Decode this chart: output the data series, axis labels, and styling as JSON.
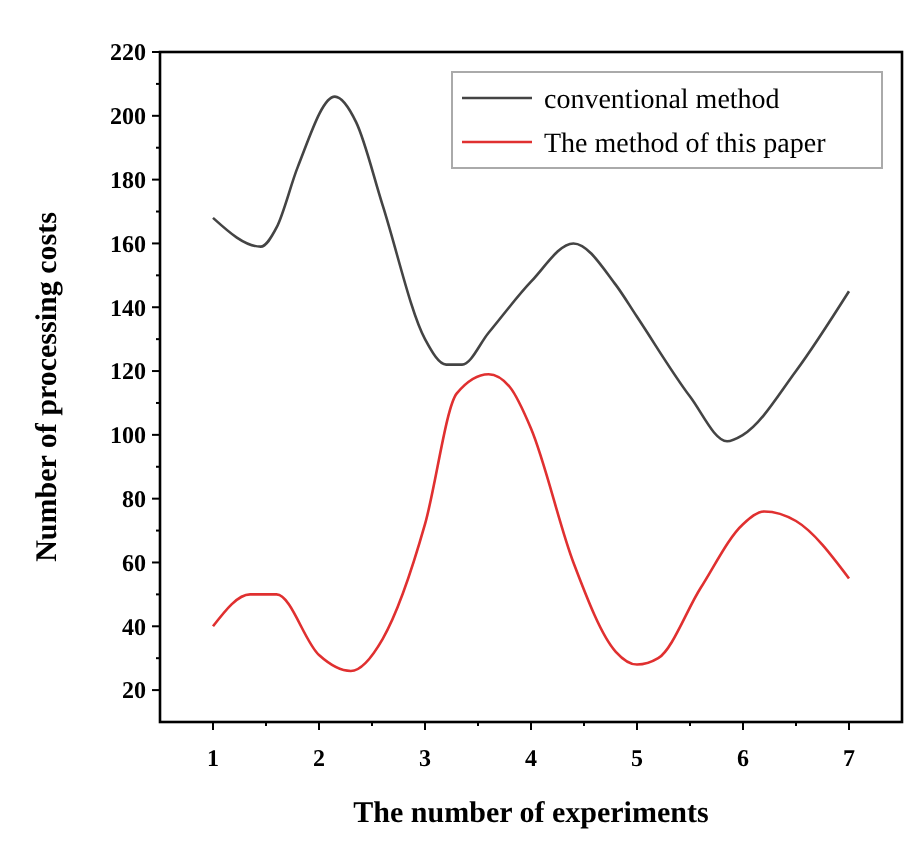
{
  "chart_data": {
    "type": "line",
    "xlabel": "The number of experiments",
    "ylabel": "Number of processing costs",
    "xlim": [
      0.5,
      7.5
    ],
    "xticks": [
      1,
      2,
      3,
      4,
      5,
      6,
      7
    ],
    "ylim": [
      10,
      220
    ],
    "yticks": [
      20,
      40,
      60,
      80,
      100,
      120,
      140,
      160,
      180,
      200,
      220
    ],
    "grid": false,
    "legend": "top right",
    "marker": "none",
    "line_style": "solid",
    "series": [
      {
        "name": "conventional method",
        "color": "#444444",
        "x": [
          1,
          1.45,
          1.6,
          1.8,
          2.15,
          2.35,
          2.6,
          3,
          3.2,
          3.35,
          3.6,
          4,
          4.4,
          4.8,
          5,
          5.5,
          5.85,
          6,
          6.5,
          7
        ],
        "values": [
          168,
          159,
          165,
          184,
          206,
          198,
          172,
          130,
          122,
          122,
          132,
          148,
          160,
          147,
          137,
          112,
          98,
          100,
          120,
          145
        ]
      },
      {
        "name": "The method of this paper",
        "color": "#e03030",
        "x": [
          1,
          1.35,
          1.6,
          2,
          2.3,
          2.6,
          3,
          3.3,
          3.6,
          3.8,
          4,
          4.4,
          4.8,
          5,
          5.2,
          5.6,
          6,
          6.2,
          6.5,
          7
        ],
        "values": [
          40,
          50,
          50,
          31,
          26,
          36,
          72,
          113,
          119,
          115,
          102,
          60,
          32,
          28,
          30,
          52,
          72,
          76,
          73,
          55
        ]
      }
    ]
  }
}
